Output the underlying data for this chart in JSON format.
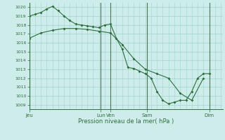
{
  "background_color": "#ceecea",
  "grid_color": "#aad8d3",
  "line_color": "#2d6e3e",
  "dark_vline_color": "#4a7a5a",
  "ylabel_ticks": [
    1009,
    1010,
    1011,
    1012,
    1013,
    1014,
    1015,
    1016,
    1017,
    1018,
    1019,
    1020
  ],
  "ylim": [
    1008.5,
    1020.5
  ],
  "xlabel": "Pression niveau de la mer( hPa )",
  "xlim": [
    0,
    100
  ],
  "day_ticks_x": [
    0,
    37,
    42,
    61,
    93
  ],
  "day_labels": [
    "Jeu",
    "Lun",
    "Ven",
    "Sam",
    "Dim"
  ],
  "vlines_x": [
    0,
    37,
    42,
    61,
    93
  ],
  "grid_vlines_x": [
    0,
    3,
    6,
    9,
    12,
    15,
    18,
    21,
    24,
    27,
    30,
    33,
    36,
    39,
    42,
    45,
    48,
    51,
    54,
    57,
    60,
    63,
    66,
    69,
    72,
    75,
    78,
    81,
    84,
    87,
    90,
    93,
    96,
    99
  ],
  "line1_x": [
    0,
    3,
    6,
    9,
    12,
    15,
    18,
    21,
    24,
    27,
    30,
    33,
    36,
    39,
    42,
    45,
    48,
    51,
    54,
    57,
    60,
    63,
    66,
    69,
    72,
    75,
    78,
    81,
    84,
    87,
    90,
    93
  ],
  "line1_y": [
    1019.0,
    1019.2,
    1019.4,
    1019.8,
    1020.1,
    1019.6,
    1019.0,
    1018.5,
    1018.1,
    1018.0,
    1017.9,
    1017.8,
    1017.7,
    1018.0,
    1018.1,
    1016.5,
    1015.3,
    1013.2,
    1013.1,
    1012.8,
    1012.5,
    1012.0,
    1010.5,
    1009.5,
    1009.1,
    1009.3,
    1009.5,
    1009.5,
    1010.5,
    1012.0,
    1012.5,
    1012.5
  ],
  "line2_x": [
    0,
    6,
    12,
    18,
    24,
    30,
    36,
    42,
    48,
    54,
    60,
    66,
    72,
    78,
    84,
    90
  ],
  "line2_y": [
    1016.5,
    1017.1,
    1017.4,
    1017.6,
    1017.6,
    1017.5,
    1017.3,
    1017.1,
    1015.8,
    1014.2,
    1013.0,
    1012.5,
    1012.0,
    1010.3,
    1009.5,
    1012.0
  ]
}
